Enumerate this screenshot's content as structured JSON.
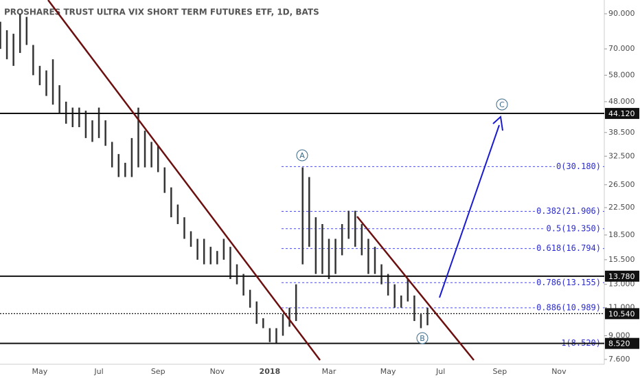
{
  "chart_data": {
    "type": "ohlc",
    "title": "PROSHARES TRUST ULTRA VIX SHORT TERM FUTURES ETF, 1D, BATS",
    "log_scale": true,
    "color": "#333333",
    "categories": [
      null,
      null,
      null,
      null,
      null,
      null,
      "May",
      null,
      null,
      null,
      null,
      null,
      null,
      null,
      null,
      "Jul",
      null,
      null,
      null,
      null,
      null,
      null,
      null,
      null,
      "Sep",
      null,
      null,
      null,
      null,
      null,
      null,
      null,
      null,
      "Nov",
      null,
      null,
      null,
      null,
      null,
      null,
      null,
      "2018",
      null,
      null,
      null,
      null,
      null,
      null,
      null,
      null,
      "Mar",
      null,
      null,
      null,
      null,
      null,
      null,
      null,
      null,
      "May",
      null,
      null,
      null,
      null,
      null,
      null,
      null,
      "Jul",
      null,
      null,
      null,
      null,
      null,
      null,
      null,
      null,
      "Sep",
      null,
      null,
      null,
      null,
      null,
      null,
      null,
      null,
      "Nov",
      null
    ],
    "high": [
      85,
      80,
      78,
      90,
      88,
      72,
      62,
      60,
      65,
      54,
      48,
      46,
      46,
      45,
      42,
      46,
      42,
      36,
      33,
      31,
      37,
      46,
      39,
      36,
      35,
      30,
      26,
      23,
      21,
      19,
      18,
      18,
      17,
      16.5,
      18,
      17,
      15,
      14,
      12.5,
      11.5,
      10.2,
      9.5,
      9.5,
      10.5,
      11,
      13,
      30,
      28,
      21,
      20,
      18,
      18,
      20,
      22,
      22,
      20,
      18,
      17,
      15,
      14,
      13,
      12,
      13.5,
      12,
      10.5,
      11,
      null,
      null,
      null,
      null,
      null,
      null,
      null,
      null,
      null,
      null,
      null,
      null,
      null,
      null,
      null,
      null,
      null,
      null,
      null,
      null,
      null
    ],
    "low": [
      70,
      65,
      62,
      68,
      72,
      58,
      54,
      50,
      47,
      44,
      41,
      40,
      40,
      37,
      36,
      37,
      35,
      30,
      28,
      28,
      28,
      30,
      30,
      30,
      29,
      25,
      21,
      20,
      18,
      17,
      15.5,
      15,
      15,
      15,
      15.5,
      13.5,
      13,
      12,
      11,
      9.8,
      9.5,
      8.6,
      8.5,
      9,
      9.6,
      10,
      15,
      17,
      14,
      14,
      13.5,
      14,
      16,
      18,
      17,
      16,
      14,
      14,
      13,
      12,
      11,
      11,
      11.5,
      10,
      9.5,
      9.7,
      null,
      null,
      null,
      null,
      null,
      null,
      null,
      null,
      null,
      null,
      null,
      null,
      null,
      null,
      null,
      null,
      null,
      null,
      null,
      null,
      null
    ],
    "ylim": [
      7.34,
      99.3
    ],
    "yticks": [
      {
        "value": 90,
        "label": "90.000"
      },
      {
        "value": 70,
        "label": "70.000"
      },
      {
        "value": 58,
        "label": "58.000"
      },
      {
        "value": 48,
        "label": "48.000"
      },
      {
        "value": 38.5,
        "label": "38.500"
      },
      {
        "value": 32.5,
        "label": "32.500"
      },
      {
        "value": 26.5,
        "label": "26.500"
      },
      {
        "value": 22.5,
        "label": "22.500"
      },
      {
        "value": 18.5,
        "label": "18.500"
      },
      {
        "value": 15.5,
        "label": "15.500"
      },
      {
        "value": 13,
        "label": "13.000"
      },
      {
        "value": 11,
        "label": "11.000"
      },
      {
        "value": 9,
        "label": "9.000"
      },
      {
        "value": 7.6,
        "label": "7.600"
      }
    ],
    "price_lines": [
      {
        "value": 44.12,
        "label": "44.120",
        "style": "solid"
      },
      {
        "value": 13.78,
        "label": "13.780",
        "style": "solid"
      },
      {
        "value": 10.54,
        "label": "10.540",
        "style": "dotted"
      },
      {
        "value": 8.52,
        "label": "8.520",
        "style": "solid"
      }
    ],
    "fib_levels": [
      {
        "value": 30.18,
        "label": "0(30.180)"
      },
      {
        "value": 21.906,
        "label": "0.382(21.906)"
      },
      {
        "value": 19.35,
        "label": "0.5(19.350)"
      },
      {
        "value": 16.794,
        "label": "0.618(16.794)"
      },
      {
        "value": 13.155,
        "label": "0.786(13.155)"
      },
      {
        "value": 10.989,
        "label": "0.886(10.989)"
      },
      {
        "value": 8.52,
        "label": "1(8.520)"
      }
    ],
    "waves": [
      "A",
      "B",
      "C"
    ]
  }
}
